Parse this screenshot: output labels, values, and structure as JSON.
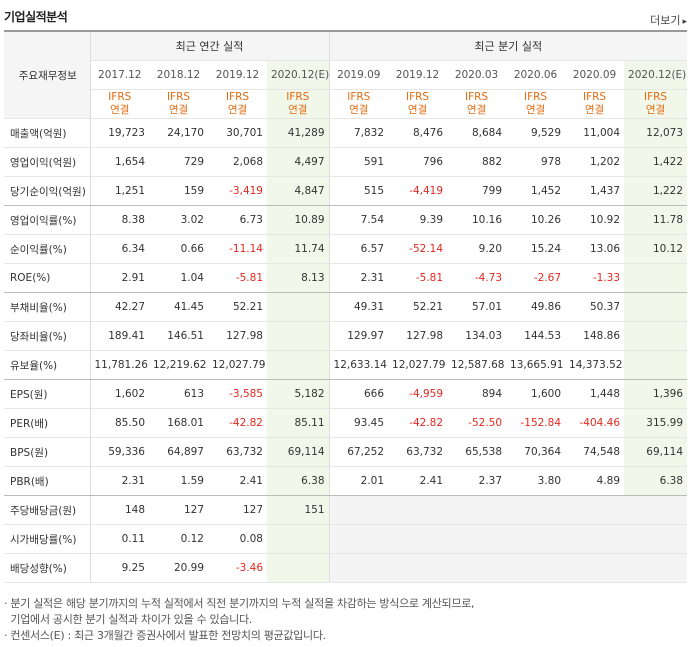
{
  "title": "기업실적분석",
  "more": "더보기",
  "row_header": "주요재무정보",
  "groups": {
    "annual": "최근 연간 실적",
    "quarter": "최근 분기 실적"
  },
  "annual_dates": [
    "2017.12",
    "2018.12",
    "2019.12",
    "2020.12(E)"
  ],
  "quarter_dates": [
    "2019.09",
    "2019.12",
    "2020.03",
    "2020.06",
    "2020.09",
    "2020.12(E)"
  ],
  "ifrs": {
    "line1": "IFRS",
    "line2": "연결"
  },
  "rows": [
    {
      "label": "매출액(억원)",
      "annual": [
        "19,723",
        "24,170",
        "30,701",
        "41,289"
      ],
      "quarter": [
        "7,832",
        "8,476",
        "8,684",
        "9,529",
        "11,004",
        "12,073"
      ]
    },
    {
      "label": "영업이익(억원)",
      "annual": [
        "1,654",
        "729",
        "2,068",
        "4,497"
      ],
      "quarter": [
        "591",
        "796",
        "882",
        "978",
        "1,202",
        "1,422"
      ]
    },
    {
      "label": "당기순이익(억원)",
      "annual": [
        "1,251",
        "159",
        "-3,419",
        "4,847"
      ],
      "quarter": [
        "515",
        "-4,419",
        "799",
        "1,452",
        "1,437",
        "1,222"
      ]
    },
    {
      "label": "영업이익률(%)",
      "annual": [
        "8.38",
        "3.02",
        "6.73",
        "10.89"
      ],
      "quarter": [
        "7.54",
        "9.39",
        "10.16",
        "10.26",
        "10.92",
        "11.78"
      ]
    },
    {
      "label": "순이익률(%)",
      "annual": [
        "6.34",
        "0.66",
        "-11.14",
        "11.74"
      ],
      "quarter": [
        "6.57",
        "-52.14",
        "9.20",
        "15.24",
        "13.06",
        "10.12"
      ]
    },
    {
      "label": "ROE(%)",
      "annual": [
        "2.91",
        "1.04",
        "-5.81",
        "8.13"
      ],
      "quarter": [
        "2.31",
        "-5.81",
        "-4.73",
        "-2.67",
        "-1.33",
        ""
      ]
    },
    {
      "label": "부채비율(%)",
      "annual": [
        "42.27",
        "41.45",
        "52.21",
        ""
      ],
      "quarter": [
        "49.31",
        "52.21",
        "57.01",
        "49.86",
        "50.37",
        ""
      ]
    },
    {
      "label": "당좌비율(%)",
      "annual": [
        "189.41",
        "146.51",
        "127.98",
        ""
      ],
      "quarter": [
        "129.97",
        "127.98",
        "134.03",
        "144.53",
        "148.86",
        ""
      ]
    },
    {
      "label": "유보율(%)",
      "annual": [
        "11,781.26",
        "12,219.62",
        "12,027.79",
        ""
      ],
      "quarter": [
        "12,633.14",
        "12,027.79",
        "12,587.68",
        "13,665.91",
        "14,373.52",
        ""
      ]
    },
    {
      "label": "EPS(원)",
      "annual": [
        "1,602",
        "613",
        "-3,585",
        "5,182"
      ],
      "quarter": [
        "666",
        "-4,959",
        "894",
        "1,600",
        "1,448",
        "1,396"
      ]
    },
    {
      "label": "PER(배)",
      "annual": [
        "85.50",
        "168.01",
        "-42.82",
        "85.11"
      ],
      "quarter": [
        "93.45",
        "-42.82",
        "-52.50",
        "-152.84",
        "-404.46",
        "315.99"
      ]
    },
    {
      "label": "BPS(원)",
      "annual": [
        "59,336",
        "64,897",
        "63,732",
        "69,114"
      ],
      "quarter": [
        "67,252",
        "63,732",
        "65,538",
        "70,364",
        "74,548",
        "69,114"
      ]
    },
    {
      "label": "PBR(배)",
      "annual": [
        "2.31",
        "1.59",
        "2.41",
        "6.38"
      ],
      "quarter": [
        "2.01",
        "2.41",
        "2.37",
        "3.80",
        "4.89",
        "6.38"
      ]
    },
    {
      "label": "주당배당금(원)",
      "annual": [
        "148",
        "127",
        "127",
        "151"
      ],
      "quarter": [
        "",
        "",
        "",
        "",
        "",
        ""
      ]
    },
    {
      "label": "시가배당률(%)",
      "annual": [
        "0.11",
        "0.12",
        "0.08",
        ""
      ],
      "quarter": [
        "",
        "",
        "",
        "",
        "",
        ""
      ]
    },
    {
      "label": "배당성향(%)",
      "annual": [
        "9.25",
        "20.99",
        "-3.46",
        ""
      ],
      "quarter": [
        "",
        "",
        "",
        "",
        "",
        ""
      ]
    }
  ],
  "notes": [
    "· 분기 실적은 해당 분기까지의 누적 실적에서 직전 분기까지의 누적 실적을 차감하는 방식으로 계산되므로,",
    "  기업에서 공시한 분기 실적과 차이가 있을 수 있습니다.",
    "· 컨센서스(E) : 최근 3개월간 증권사에서 발표한 전망치의 평균값입니다."
  ],
  "colors": {
    "negative": "#e4281f",
    "ifrs": "#e26a10",
    "estimate_bg": "#f1f8ea"
  }
}
